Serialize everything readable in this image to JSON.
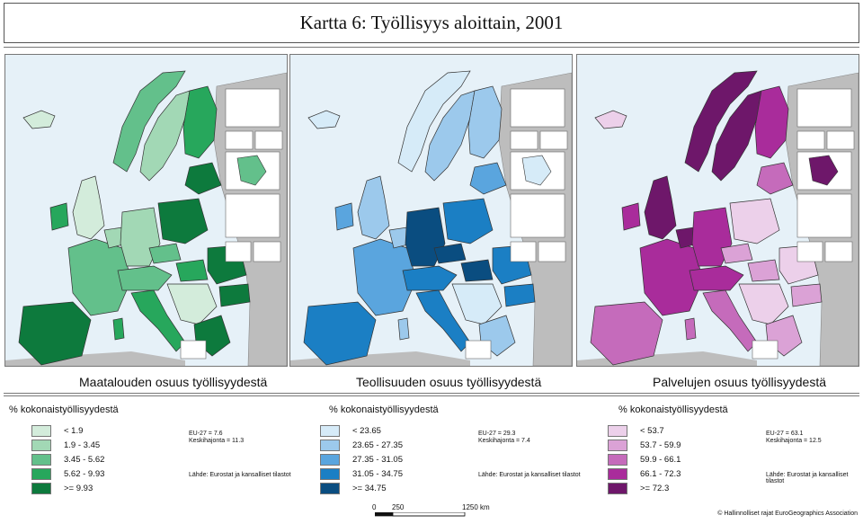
{
  "title": "Kartta 6: Työllisyys aloittain, 2001",
  "legend_heading": "% kokonaistyöllisyydestä",
  "maps": [
    {
      "title": "Maatalouden osuus työllisyydestä",
      "colors": [
        "#d3ecdb",
        "#a2d8b5",
        "#63c08b",
        "#27a75c",
        "#0d7a3d"
      ],
      "classes": [
        "< 1.9",
        "1.9 - 3.45",
        "3.45 - 5.62",
        "5.62 - 9.93",
        ">= 9.93"
      ],
      "stats": [
        "EU-27 = 7.6",
        "Keskihajonta = 11.3"
      ],
      "source": "Lähde: Eurostat ja kansalliset tilastot"
    },
    {
      "title": "Teollisuuden osuus työllisyydestä",
      "colors": [
        "#d6ebf8",
        "#9cc9ec",
        "#5aa5de",
        "#1b7fc4",
        "#0a4d80"
      ],
      "classes": [
        "< 23.65",
        "23.65 - 27.35",
        "27.35 - 31.05",
        "31.05 - 34.75",
        ">= 34.75"
      ],
      "stats": [
        "EU-27 = 29.3",
        "Keskihajonta = 7.4"
      ],
      "source": "Lähde: Eurostat ja kansalliset tilastot"
    },
    {
      "title": "Palvelujen osuus työllisyydestä",
      "colors": [
        "#ecd0ea",
        "#dba2d6",
        "#c56bbb",
        "#a92c9b",
        "#6e176a"
      ],
      "classes": [
        "< 53.7",
        "53.7 - 59.9",
        "59.9 - 66.1",
        "66.1 - 72.3",
        ">= 72.3"
      ],
      "stats": [
        "EU-27 = 63.1",
        "Keskihajonta = 12.5"
      ],
      "source": "Lähde: Eurostat ja kansalliset tilastot"
    }
  ],
  "scale": {
    "ticks": [
      "0",
      "250",
      "1250 km"
    ]
  },
  "copyright": "© Hallinnolliset rajat EuroGeographics Association"
}
